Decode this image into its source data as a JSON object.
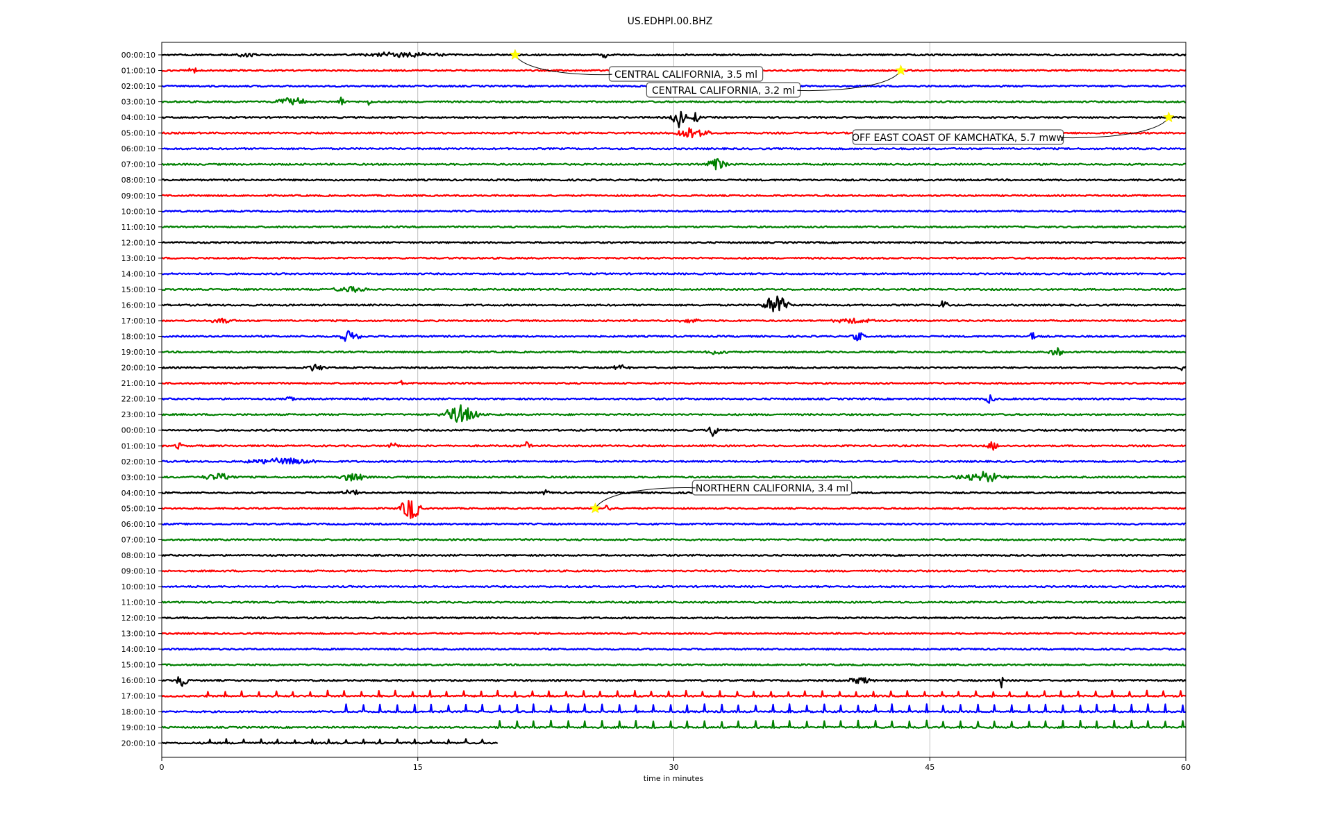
{
  "chart_data": {
    "type": "line",
    "title": "US.EDHPI.00.BHZ",
    "xlabel": "time in minutes",
    "ylabel": "",
    "xlim": [
      0,
      60
    ],
    "x_ticks": [
      0,
      15,
      30,
      45,
      60
    ],
    "grid": "vertical at x ticks",
    "row_labels": [
      "00:00:10",
      "01:00:10",
      "02:00:10",
      "03:00:10",
      "04:00:10",
      "05:00:10",
      "06:00:10",
      "07:00:10",
      "08:00:10",
      "09:00:10",
      "10:00:10",
      "11:00:10",
      "12:00:10",
      "13:00:10",
      "14:00:10",
      "15:00:10",
      "16:00:10",
      "17:00:10",
      "18:00:10",
      "19:00:10",
      "20:00:10",
      "21:00:10",
      "22:00:10",
      "23:00:10",
      "00:00:10",
      "01:00:10",
      "02:00:10",
      "03:00:10",
      "04:00:10",
      "05:00:10",
      "06:00:10",
      "07:00:10",
      "08:00:10",
      "09:00:10",
      "10:00:10",
      "11:00:10",
      "12:00:10",
      "13:00:10",
      "14:00:10",
      "15:00:10",
      "16:00:10",
      "17:00:10",
      "18:00:10",
      "19:00:10",
      "20:00:10"
    ],
    "trace_colors": [
      "#000000",
      "#ff0000",
      "#0000ff",
      "#008000"
    ],
    "last_row_end_minute": 19.7,
    "events": [
      {
        "row": 0,
        "minute": 20.7,
        "label": "CENTRAL CALIFORNIA, 3.5 ml"
      },
      {
        "row": 1,
        "minute": 43.3,
        "label": "CENTRAL CALIFORNIA, 3.2 ml"
      },
      {
        "row": 4,
        "minute": 59.0,
        "label": "OFF EAST COAST OF KAMCHATKA, 5.7 mww"
      },
      {
        "row": 29,
        "minute": 25.4,
        "label": "NORTHERN CALIFORNIA, 3.4 ml"
      }
    ],
    "bursts": [
      {
        "row": 0,
        "minute": 5,
        "amp": 4,
        "width": 0.8
      },
      {
        "row": 0,
        "minute": 14,
        "amp": 5,
        "width": 3
      },
      {
        "row": 0,
        "minute": 26,
        "amp": 5,
        "width": 0.3
      },
      {
        "row": 1,
        "minute": 1.8,
        "amp": 6,
        "width": 0.4
      },
      {
        "row": 3,
        "minute": 7.5,
        "amp": 8,
        "width": 1.2
      },
      {
        "row": 3,
        "minute": 10.5,
        "amp": 8,
        "width": 0.3
      },
      {
        "row": 3,
        "minute": 12.2,
        "amp": 7,
        "width": 0.2
      },
      {
        "row": 4,
        "minute": 30.3,
        "amp": 14,
        "width": 0.6
      },
      {
        "row": 4,
        "minute": 31.3,
        "amp": 10,
        "width": 0.3
      },
      {
        "row": 5,
        "minute": 31,
        "amp": 9,
        "width": 1.4
      },
      {
        "row": 7,
        "minute": 32.5,
        "amp": 11,
        "width": 0.8
      },
      {
        "row": 15,
        "minute": 11,
        "amp": 4,
        "width": 1.5
      },
      {
        "row": 16,
        "minute": 36,
        "amp": 16,
        "width": 1
      },
      {
        "row": 16,
        "minute": 45.8,
        "amp": 6,
        "width": 0.5
      },
      {
        "row": 17,
        "minute": 3.5,
        "amp": 4,
        "width": 1
      },
      {
        "row": 17,
        "minute": 31,
        "amp": 4,
        "width": 1
      },
      {
        "row": 17,
        "minute": 40.5,
        "amp": 4,
        "width": 1.5
      },
      {
        "row": 18,
        "minute": 11,
        "amp": 9,
        "width": 0.8
      },
      {
        "row": 18,
        "minute": 40.8,
        "amp": 7,
        "width": 0.5
      },
      {
        "row": 18,
        "minute": 51,
        "amp": 11,
        "width": 0.2
      },
      {
        "row": 19,
        "minute": 32.5,
        "amp": 5,
        "width": 0.8
      },
      {
        "row": 19,
        "minute": 52.5,
        "amp": 5,
        "width": 0.8
      },
      {
        "row": 20,
        "minute": 9,
        "amp": 5,
        "width": 0.8
      },
      {
        "row": 20,
        "minute": 27,
        "amp": 5,
        "width": 0.8
      },
      {
        "row": 20,
        "minute": 59.8,
        "amp": 7,
        "width": 0.3
      },
      {
        "row": 21,
        "minute": 14,
        "amp": 4,
        "width": 0.3
      },
      {
        "row": 22,
        "minute": 7.5,
        "amp": 5,
        "width": 0.3
      },
      {
        "row": 22,
        "minute": 48.5,
        "amp": 6,
        "width": 0.5
      },
      {
        "row": 23,
        "minute": 17.5,
        "amp": 14,
        "width": 1.4
      },
      {
        "row": 24,
        "minute": 32.3,
        "amp": 10,
        "width": 0.4
      },
      {
        "row": 25,
        "minute": 1,
        "amp": 5,
        "width": 0.3
      },
      {
        "row": 25,
        "minute": 13.6,
        "amp": 6,
        "width": 0.4
      },
      {
        "row": 25,
        "minute": 21.4,
        "amp": 8,
        "width": 0.3
      },
      {
        "row": 25,
        "minute": 48.7,
        "amp": 8,
        "width": 0.4
      },
      {
        "row": 26,
        "minute": 7,
        "amp": 5,
        "width": 3
      },
      {
        "row": 27,
        "minute": 3.3,
        "amp": 6,
        "width": 1.2
      },
      {
        "row": 27,
        "minute": 11.3,
        "amp": 8,
        "width": 1
      },
      {
        "row": 27,
        "minute": 48,
        "amp": 8,
        "width": 2
      },
      {
        "row": 28,
        "minute": 11,
        "amp": 5,
        "width": 0.8
      },
      {
        "row": 28,
        "minute": 22.5,
        "amp": 4,
        "width": 0.3
      },
      {
        "row": 29,
        "minute": 14.6,
        "amp": 18,
        "width": 0.8
      },
      {
        "row": 29,
        "minute": 26,
        "amp": 5,
        "width": 0.5
      },
      {
        "row": 40,
        "minute": 1.2,
        "amp": 14,
        "width": 0.4
      },
      {
        "row": 40,
        "minute": 41,
        "amp": 6,
        "width": 1
      },
      {
        "row": 40,
        "minute": 49.2,
        "amp": 12,
        "width": 0.2
      }
    ],
    "spike_trains": [
      {
        "row": 41,
        "start": 1.7,
        "end": 60,
        "every": 1.0,
        "amp": 7
      },
      {
        "row": 42,
        "start": 10.8,
        "end": 60,
        "every": 1.0,
        "amp": 10
      },
      {
        "row": 43,
        "start": 18.8,
        "end": 60,
        "every": 1.0,
        "amp": 9
      },
      {
        "row": 44,
        "start": 2.8,
        "end": 19.7,
        "every": 1.0,
        "amp": 5
      }
    ]
  }
}
